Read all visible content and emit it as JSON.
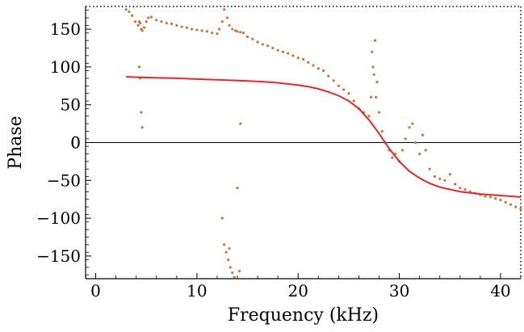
{
  "chart_data": {
    "type": "scatter",
    "xlabel": "Frequency (kHz)",
    "ylabel": "Phase",
    "xlim": [
      -1,
      42
    ],
    "ylim": [
      -180,
      180
    ],
    "xticks": [
      0,
      10,
      20,
      30,
      40
    ],
    "yticks": [
      150,
      100,
      50,
      0,
      -50,
      -100,
      -150
    ],
    "x_tick_labels": [
      "0",
      "10",
      "20",
      "30",
      "40"
    ],
    "y_tick_labels": [
      "150",
      "100",
      "50",
      "0",
      "−50",
      "−100",
      "−150"
    ],
    "frame": "dotted",
    "grid": false,
    "legend": "none",
    "series": [
      {
        "kind": "scatter",
        "color": "#c8783c",
        "x": [
          3.0,
          3.3,
          3.6,
          3.9,
          4.2,
          4.3,
          4.4,
          4.5,
          4.6,
          4.8,
          5.0,
          5.2,
          5.5,
          6.0,
          6.5,
          7.0,
          7.5,
          8.0,
          8.5,
          9.0,
          9.5,
          10.0,
          10.5,
          11.0,
          11.5,
          12.0,
          12.2,
          12.5,
          12.7,
          13.0,
          13.2,
          13.5,
          13.8,
          14.0,
          14.3,
          14.6,
          15.0,
          15.5,
          16.0,
          16.5,
          17.0,
          17.5,
          18.0,
          18.5,
          19.0,
          19.5,
          20.0,
          20.5,
          21.0,
          21.5,
          22.0,
          22.5,
          23.0,
          23.5,
          24.0,
          24.5,
          25.0,
          25.5,
          26.0,
          26.5,
          27.0,
          27.2,
          27.4,
          27.6,
          27.8,
          28.0,
          28.3,
          28.6,
          29.0,
          29.3,
          29.6,
          30.0,
          30.3,
          30.6,
          31.0,
          31.3,
          31.6,
          32.0,
          32.3,
          32.6,
          33.0,
          33.5,
          34.0,
          34.5,
          35.0,
          35.5,
          36.0,
          36.5,
          37.0,
          37.5,
          38.0,
          38.5,
          39.0,
          39.5,
          40.0,
          40.5,
          41.0,
          41.5,
          42.0,
          4.3,
          4.4,
          4.5,
          4.6,
          12.5,
          12.7,
          12.9,
          13.1,
          13.3,
          13.5,
          13.7,
          14.0,
          14.3,
          13.2,
          14.2,
          27.3,
          27.5,
          27.7
        ],
        "y": [
          176,
          173,
          168,
          160,
          155,
          160,
          158,
          150,
          148,
          152,
          160,
          165,
          166,
          162,
          160,
          158,
          157,
          155,
          153,
          152,
          150,
          149,
          148,
          147,
          145,
          144,
          150,
          160,
          176,
          165,
          155,
          150,
          148,
          147,
          146,
          145,
          140,
          137,
          133,
          130,
          128,
          125,
          122,
          120,
          118,
          115,
          112,
          110,
          106,
          102,
          98,
          95,
          88,
          82,
          75,
          70,
          65,
          55,
          45,
          40,
          35,
          60,
          100,
          135,
          80,
          40,
          15,
          0,
          -10,
          -20,
          -15,
          -25,
          -10,
          5,
          20,
          25,
          0,
          -15,
          10,
          -10,
          -35,
          -45,
          -48,
          -50,
          -42,
          -55,
          -60,
          -62,
          -65,
          -67,
          -69,
          -71,
          -72,
          -74,
          -76,
          -79,
          -82,
          -85,
          -88,
          100,
          85,
          40,
          20,
          -100,
          -135,
          -145,
          -155,
          -165,
          -172,
          -178,
          -60,
          25,
          -140,
          -170,
          120,
          90,
          60
        ]
      },
      {
        "kind": "line",
        "color": "#e8262b",
        "x": [
          3,
          5,
          8,
          10,
          12,
          14,
          16,
          18,
          20,
          21,
          22,
          23,
          24,
          25,
          26,
          27,
          28,
          29,
          30,
          31,
          32,
          33,
          34,
          35,
          36,
          38,
          40,
          42
        ],
        "y": [
          87,
          86,
          85,
          84,
          83,
          82,
          81,
          79,
          76,
          74,
          71,
          67,
          62,
          55,
          45,
          30,
          12,
          -8,
          -25,
          -38,
          -47,
          -54,
          -59,
          -62,
          -65,
          -68,
          -70,
          -72
        ]
      }
    ],
    "reference_line": {
      "y": 0,
      "color": "#000000"
    }
  }
}
